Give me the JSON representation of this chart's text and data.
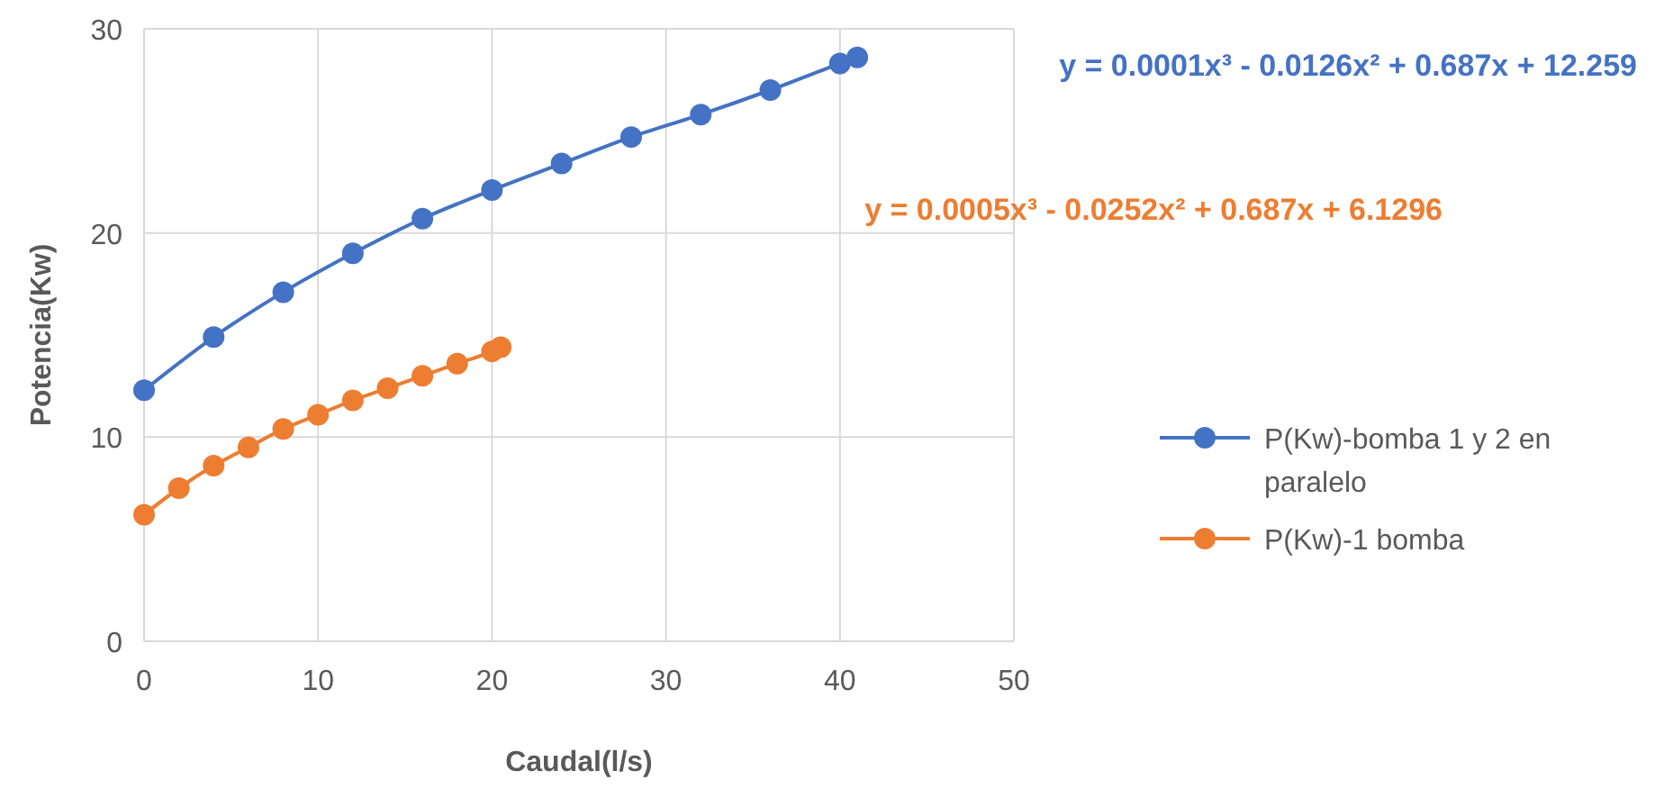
{
  "chart_data": {
    "type": "line",
    "xlabel": "Caudal(l/s)",
    "ylabel": "Potencia(Kw)",
    "xlim": [
      0,
      50
    ],
    "xticks": [
      0,
      10,
      20,
      30,
      40,
      50
    ],
    "ylim": [
      0,
      30
    ],
    "yticks": [
      0,
      10,
      20,
      30
    ],
    "grid": true,
    "legend": "right",
    "marker": "circle",
    "line_style": "solid",
    "series": [
      {
        "name": "P(Kw)-bomba 1 y 2 en paralelo",
        "color": "#4472c4",
        "x": [
          0,
          4,
          8,
          12,
          16,
          20,
          24,
          28,
          32,
          36,
          40,
          41
        ],
        "values": [
          12.3,
          14.9,
          17.1,
          19.0,
          20.7,
          22.1,
          23.4,
          24.7,
          25.8,
          27.0,
          28.3,
          28.6
        ]
      },
      {
        "name": "P(Kw)-1 bomba",
        "color": "#ed7d31",
        "x": [
          0,
          2,
          4,
          6,
          8,
          10,
          12,
          14,
          16,
          18,
          20,
          20.5
        ],
        "values": [
          6.2,
          7.5,
          8.6,
          9.5,
          10.4,
          11.1,
          11.8,
          12.4,
          13.0,
          13.6,
          14.2,
          14.4
        ]
      }
    ],
    "annotations": [
      "y = 0.0001x³ - 0.0126x² + 0.687x + 12.259",
      "y = 0.0005x³ - 0.0252x² + 0.687x + 6.1296"
    ]
  }
}
